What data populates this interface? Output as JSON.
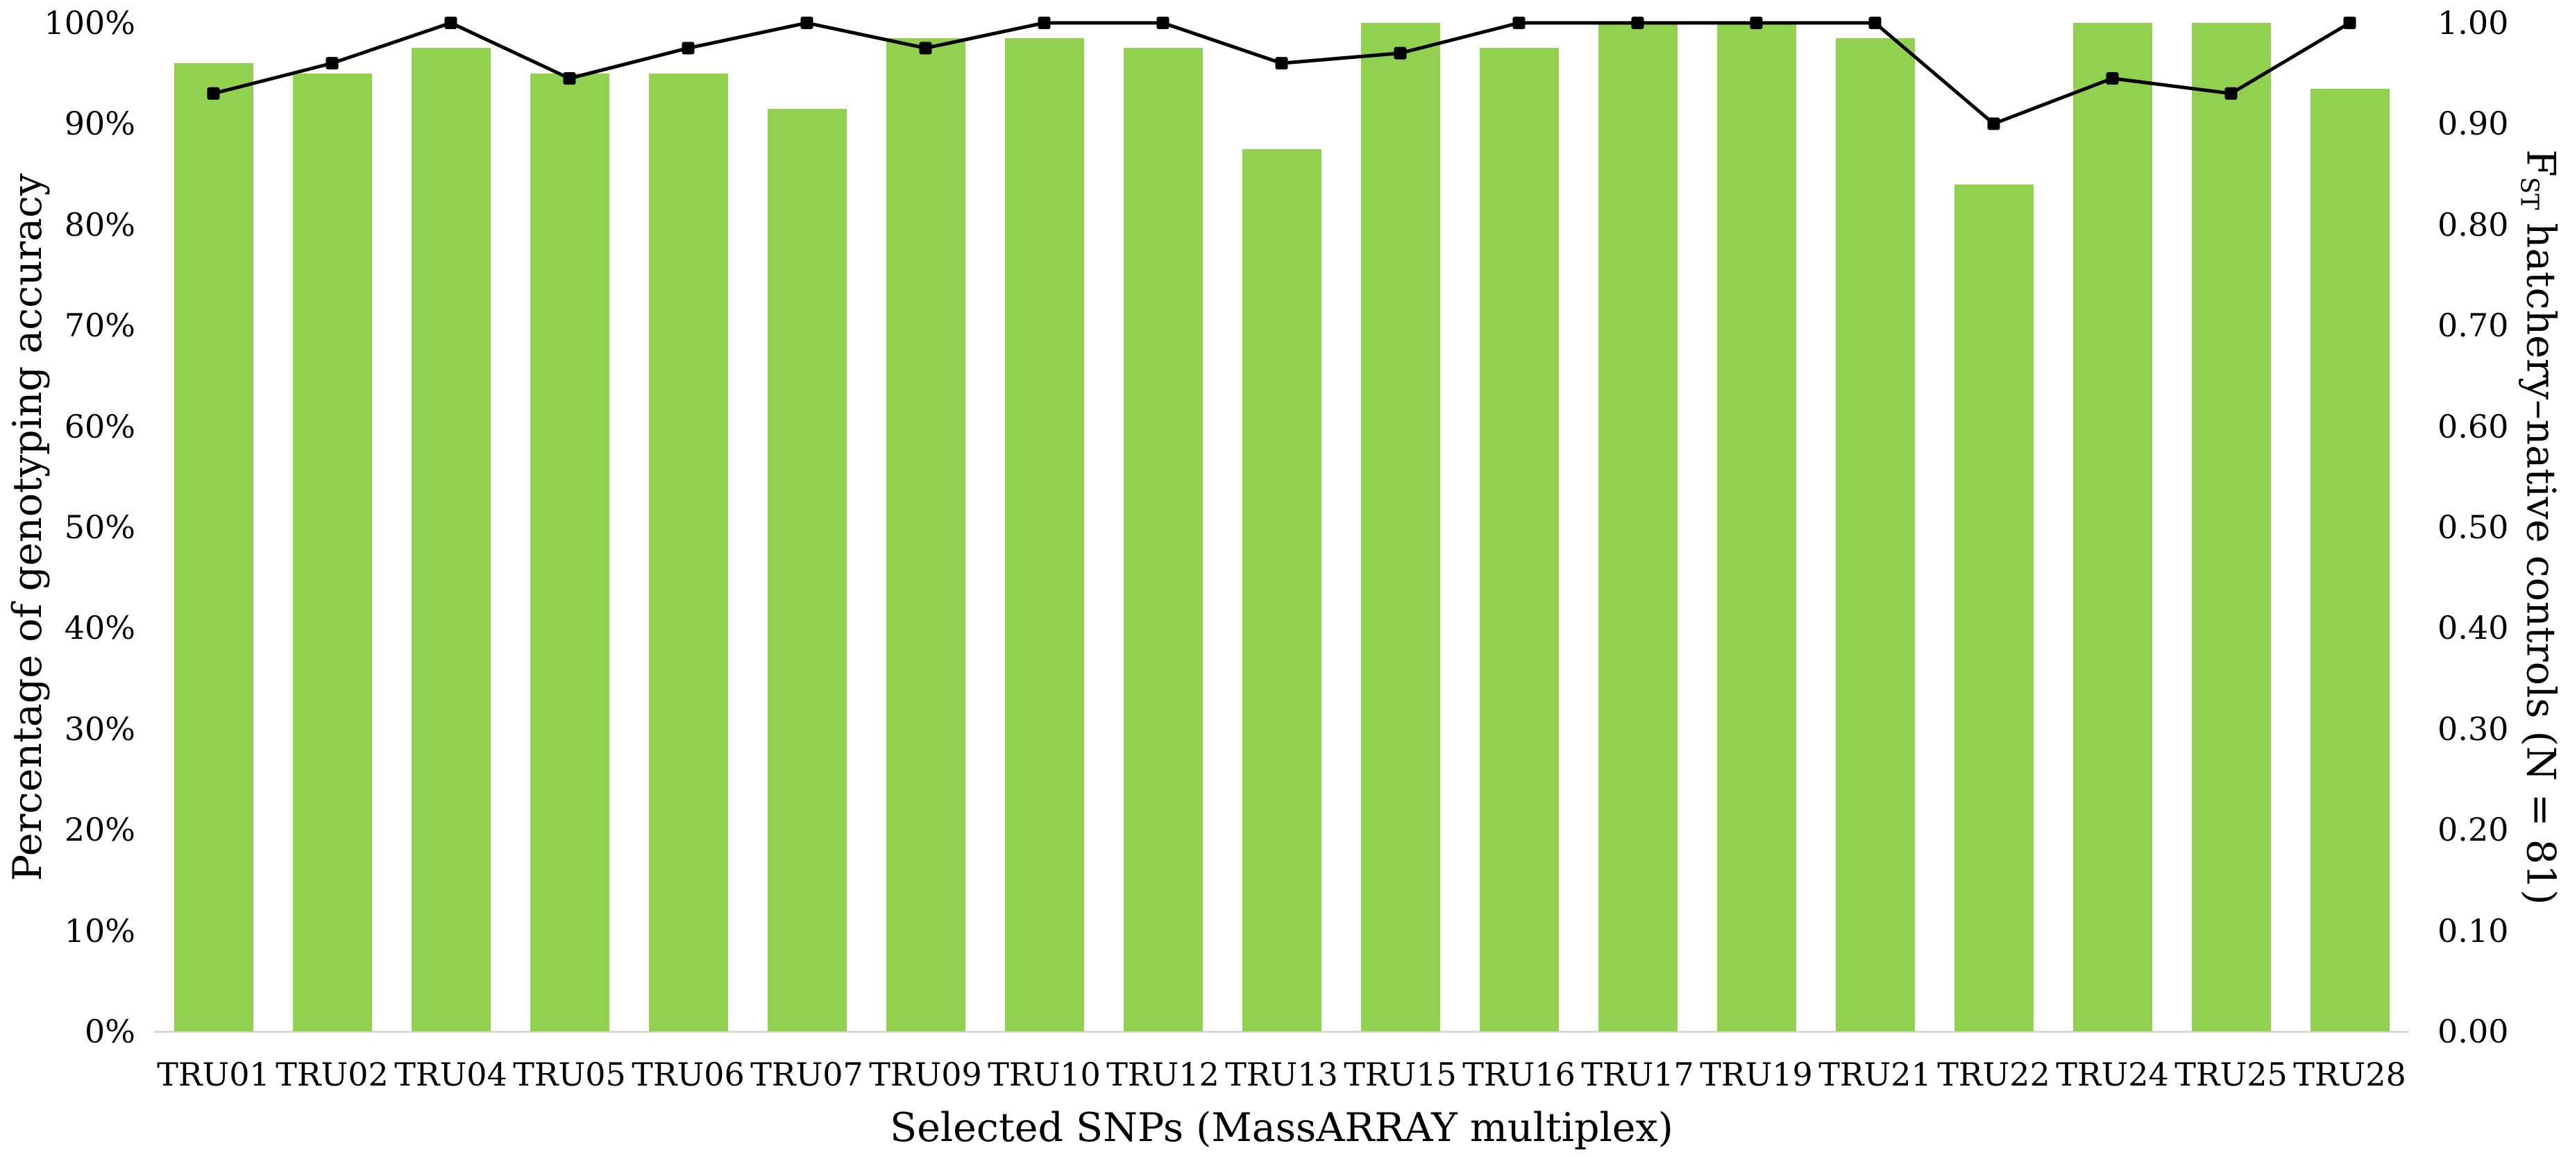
{
  "chart_data": {
    "type": "bar",
    "subtype": "combo-bar-line-dual-axis",
    "categories": [
      "TRU01",
      "TRU02",
      "TRU04",
      "TRU05",
      "TRU06",
      "TRU07",
      "TRU09",
      "TRU10",
      "TRU12",
      "TRU13",
      "TRU15",
      "TRU16",
      "TRU17",
      "TRU19",
      "TRU21",
      "TRU22",
      "TRU24",
      "TRU25",
      "TRU28"
    ],
    "series": [
      {
        "name": "Percentage of genotyping accuracy",
        "type": "bar",
        "axis": "left",
        "values": [
          96,
          95,
          97.5,
          95,
          95,
          91.5,
          98.5,
          98.5,
          97.5,
          87.5,
          100,
          97.5,
          100,
          100,
          98.5,
          84,
          100,
          100,
          93.5
        ]
      },
      {
        "name": "FST hatchery–native controls (N = 81)",
        "type": "line",
        "axis": "right",
        "marker": "square",
        "values": [
          0.93,
          0.96,
          1.0,
          0.945,
          0.975,
          1.0,
          0.975,
          1.0,
          1.0,
          0.96,
          0.97,
          1.0,
          1.0,
          1.0,
          1.0,
          0.9,
          0.945,
          0.93,
          1.0
        ]
      }
    ],
    "title": "",
    "xlabel": "Selected SNPs (MassARRAY multiplex)",
    "left_axis": {
      "label": "Percentage of genotyping accuracy",
      "min": 0,
      "max": 100,
      "ticks": [
        "0%",
        "10%",
        "20%",
        "30%",
        "40%",
        "50%",
        "60%",
        "70%",
        "80%",
        "90%",
        "100%"
      ]
    },
    "right_axis": {
      "label_main": "F",
      "label_sub": "ST",
      "label_rest": " hatchery–native controls (N = 81)",
      "min": 0,
      "max": 1,
      "ticks": [
        "0.00",
        "0.10",
        "0.20",
        "0.30",
        "0.40",
        "0.50",
        "0.60",
        "0.70",
        "0.80",
        "0.90",
        "1.00"
      ]
    },
    "legend": "none",
    "grid": "off",
    "colors": {
      "bar": "#92d050",
      "line": "#000000",
      "marker": "#000000",
      "axis_line": "#d9d9d9",
      "text": "#000000",
      "background": "#ffffff"
    }
  }
}
